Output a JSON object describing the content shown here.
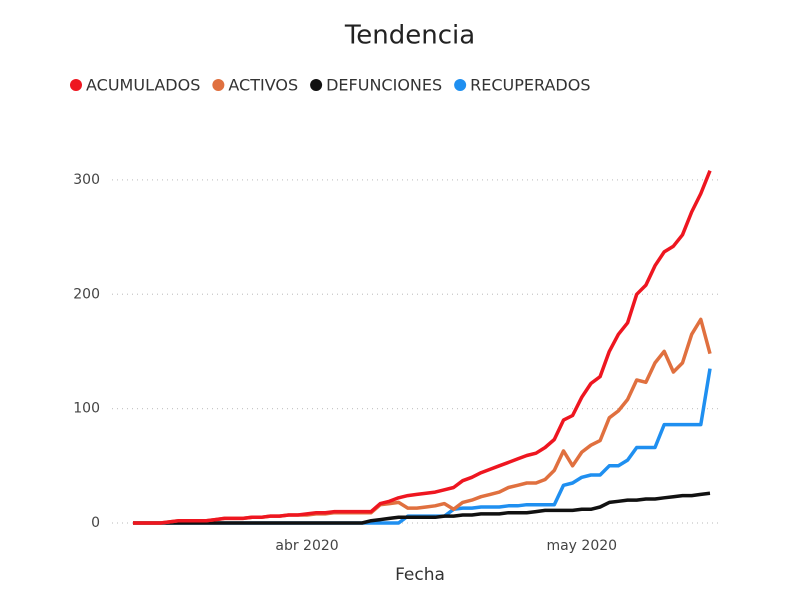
{
  "chart_data": {
    "type": "line",
    "title": "Tendencia",
    "xlabel": "Fecha",
    "categories": [
      null,
      null,
      null,
      null,
      null,
      null,
      null,
      null,
      null,
      null,
      null,
      null,
      null,
      null,
      null,
      null,
      null,
      null,
      null,
      "abr 2020",
      null,
      null,
      null,
      null,
      null,
      null,
      null,
      null,
      null,
      null,
      null,
      null,
      null,
      null,
      null,
      null,
      null,
      null,
      null,
      null,
      null,
      null,
      null,
      null,
      null,
      null,
      null,
      null,
      null,
      "may 2020",
      null,
      null,
      null,
      null,
      null,
      null,
      null,
      null,
      null,
      null,
      null,
      null,
      null,
      null
    ],
    "series": [
      {
        "name": "ACUMULADOS",
        "color": "#ee1620",
        "values": [
          0,
          0,
          0,
          0,
          1,
          2,
          2,
          2,
          2,
          3,
          4,
          4,
          4,
          5,
          5,
          6,
          6,
          7,
          7,
          8,
          9,
          9,
          10,
          10,
          10,
          10,
          10,
          17,
          19,
          22,
          24,
          25,
          26,
          27,
          29,
          31,
          37,
          40,
          44,
          47,
          50,
          53,
          56,
          59,
          61,
          66,
          73,
          90,
          94,
          110,
          122,
          128,
          150,
          165,
          175,
          200,
          208,
          225,
          237,
          242,
          252,
          272,
          288,
          308
        ]
      },
      {
        "name": "ACTIVOS",
        "color": "#e0703f",
        "values": [
          0,
          0,
          0,
          0,
          1,
          2,
          2,
          2,
          2,
          3,
          4,
          4,
          4,
          5,
          5,
          6,
          6,
          7,
          7,
          7,
          8,
          8,
          9,
          9,
          9,
          9,
          9,
          16,
          17,
          18,
          13,
          13,
          14,
          15,
          17,
          12,
          18,
          20,
          23,
          25,
          27,
          31,
          33,
          35,
          35,
          38,
          46,
          63,
          50,
          62,
          68,
          72,
          92,
          98,
          108,
          125,
          123,
          140,
          150,
          132,
          140,
          165,
          178,
          148
        ]
      },
      {
        "name": "DEFUNCIONES",
        "color": "#111111",
        "values": [
          0,
          0,
          0,
          0,
          0,
          0,
          0,
          0,
          0,
          0,
          0,
          0,
          0,
          0,
          0,
          0,
          0,
          0,
          0,
          0,
          0,
          0,
          0,
          0,
          0,
          0,
          2,
          3,
          4,
          5,
          5,
          5,
          5,
          5,
          6,
          6,
          7,
          7,
          8,
          8,
          8,
          9,
          9,
          9,
          10,
          11,
          11,
          11,
          11,
          12,
          12,
          14,
          18,
          19,
          20,
          20,
          21,
          21,
          22,
          23,
          24,
          24,
          25,
          26
        ]
      },
      {
        "name": "RECUPERADOS",
        "color": "#1f8ff0",
        "values": [
          0,
          0,
          0,
          0,
          0,
          0,
          0,
          0,
          0,
          0,
          0,
          0,
          0,
          0,
          0,
          0,
          0,
          0,
          0,
          0,
          0,
          0,
          0,
          0,
          0,
          0,
          0,
          0,
          0,
          0,
          6,
          6,
          6,
          6,
          6,
          12,
          13,
          13,
          14,
          14,
          14,
          15,
          15,
          16,
          16,
          16,
          16,
          33,
          35,
          40,
          42,
          42,
          50,
          50,
          55,
          66,
          66,
          66,
          86,
          86,
          86,
          86,
          86,
          135
        ]
      }
    ],
    "ylim": [
      0,
      320
    ],
    "yticks": [
      0,
      100,
      200,
      300
    ],
    "grid": true,
    "legend": "top"
  }
}
